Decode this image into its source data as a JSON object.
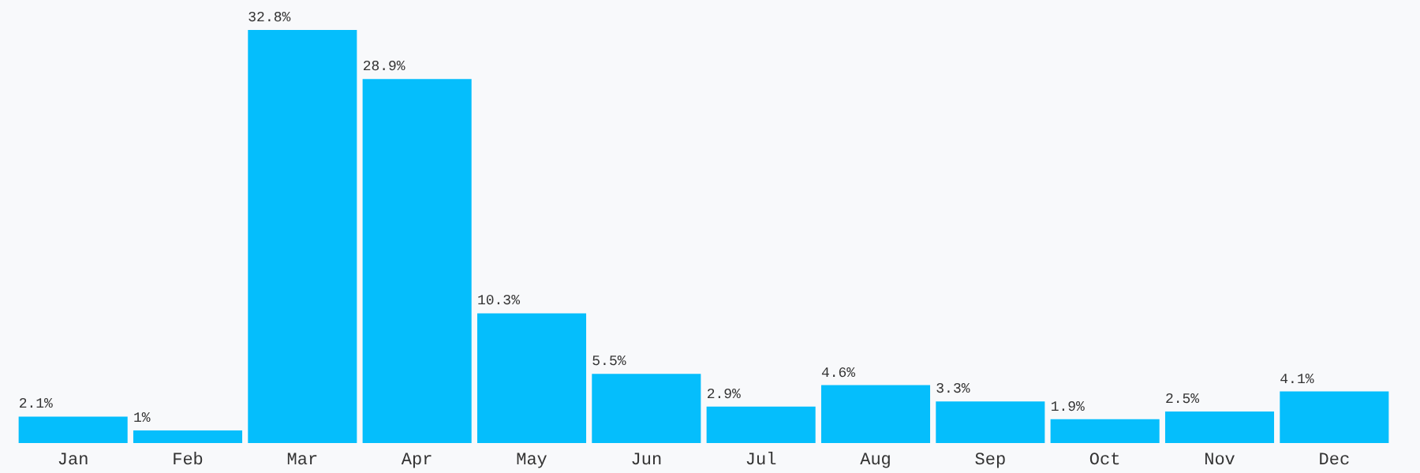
{
  "chart_data": {
    "type": "bar",
    "categories": [
      "Jan",
      "Feb",
      "Mar",
      "Apr",
      "May",
      "Jun",
      "Jul",
      "Aug",
      "Sep",
      "Oct",
      "Nov",
      "Dec"
    ],
    "values": [
      2.1,
      1,
      32.8,
      28.9,
      10.3,
      5.5,
      2.9,
      4.6,
      3.3,
      1.9,
      2.5,
      4.1
    ],
    "value_labels": [
      "2.1%",
      "1%",
      "32.8%",
      "28.9%",
      "10.3%",
      "5.5%",
      "2.9%",
      "4.6%",
      "3.3%",
      "1.9%",
      "2.5%",
      "4.1%"
    ],
    "color": "#05befc",
    "tick_labels": "x",
    "grid": false
  }
}
